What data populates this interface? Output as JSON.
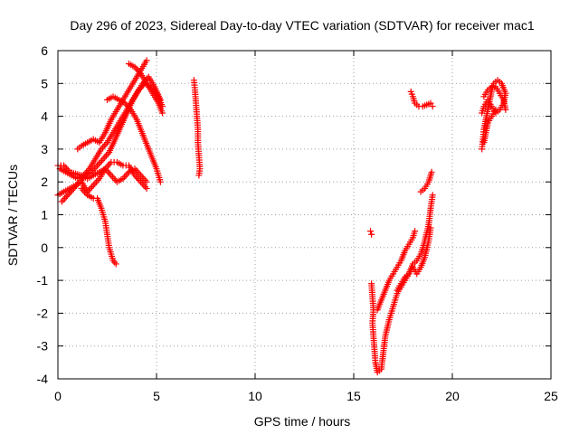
{
  "chart_data": {
    "type": "scatter",
    "title": "Day 296 of 2023, Sidereal Day-to-day VTEC variation (SDTVAR) for receiver mac1",
    "xlabel": "GPS time / hours",
    "ylabel": "SDTVAR / TECUs",
    "xlim": [
      0,
      25
    ],
    "ylim": [
      -4,
      6
    ],
    "xticks": [
      "0",
      "5",
      "10",
      "15",
      "20",
      "25"
    ],
    "yticks": [
      "-4",
      "-3",
      "-2",
      "-1",
      "0",
      "1",
      "2",
      "3",
      "4",
      "5",
      "6"
    ],
    "grid": true,
    "marker": "plus",
    "color": "#ff0000",
    "segments": [
      {
        "points": [
          [
            0.0,
            2.5
          ],
          [
            0.3,
            2.5
          ],
          [
            0.6,
            2.3
          ],
          [
            0.9,
            2.25
          ],
          [
            1.2,
            2.2
          ],
          [
            1.5,
            2.1
          ],
          [
            1.8,
            2.2
          ],
          [
            2.1,
            2.3
          ],
          [
            2.4,
            2.4
          ],
          [
            2.7,
            2.6
          ],
          [
            3.0,
            2.6
          ],
          [
            3.3,
            2.5
          ],
          [
            3.6,
            2.5
          ],
          [
            3.9,
            2.2
          ],
          [
            4.2,
            2.0
          ],
          [
            4.5,
            1.8
          ]
        ]
      },
      {
        "points": [
          [
            0.0,
            1.6
          ],
          [
            0.3,
            1.7
          ],
          [
            0.6,
            1.8
          ],
          [
            0.9,
            1.9
          ],
          [
            1.2,
            2.0
          ],
          [
            1.5,
            1.7
          ],
          [
            1.8,
            1.9
          ],
          [
            2.1,
            2.1
          ],
          [
            2.4,
            2.4
          ],
          [
            2.7,
            2.2
          ],
          [
            3.0,
            2.0
          ],
          [
            3.3,
            2.1
          ],
          [
            3.6,
            2.3
          ],
          [
            3.9,
            2.4
          ],
          [
            4.2,
            2.2
          ],
          [
            4.5,
            2.0
          ]
        ]
      },
      {
        "points": [
          [
            0.2,
            1.4
          ],
          [
            0.5,
            1.6
          ],
          [
            0.8,
            1.8
          ],
          [
            1.1,
            2.0
          ],
          [
            1.4,
            2.2
          ],
          [
            1.7,
            2.3
          ],
          [
            2.0,
            2.5
          ],
          [
            2.3,
            2.7
          ],
          [
            2.6,
            2.9
          ],
          [
            2.9,
            3.3
          ],
          [
            3.2,
            3.7
          ],
          [
            3.5,
            4.1
          ],
          [
            3.8,
            4.5
          ],
          [
            4.1,
            4.8
          ],
          [
            4.4,
            5.0
          ],
          [
            4.7,
            4.9
          ],
          [
            5.0,
            4.7
          ],
          [
            5.3,
            4.3
          ]
        ]
      },
      {
        "points": [
          [
            0.1,
            2.4
          ],
          [
            0.4,
            2.3
          ],
          [
            0.7,
            2.2
          ],
          [
            1.0,
            2.1
          ],
          [
            1.3,
            2.2
          ],
          [
            1.6,
            2.4
          ],
          [
            1.9,
            2.7
          ],
          [
            2.2,
            3.0
          ],
          [
            2.5,
            3.2
          ],
          [
            2.8,
            3.5
          ],
          [
            3.1,
            3.8
          ],
          [
            3.4,
            4.1
          ],
          [
            3.7,
            4.4
          ],
          [
            4.0,
            4.7
          ],
          [
            4.3,
            5.0
          ],
          [
            4.6,
            5.2
          ],
          [
            4.9,
            4.9
          ],
          [
            5.2,
            4.5
          ]
        ]
      },
      {
        "points": [
          [
            1.0,
            3.0
          ],
          [
            1.2,
            3.1
          ],
          [
            1.5,
            3.2
          ],
          [
            1.8,
            3.3
          ],
          [
            2.1,
            3.2
          ],
          [
            2.4,
            3.5
          ],
          [
            2.7,
            3.9
          ],
          [
            3.0,
            4.2
          ],
          [
            3.3,
            4.5
          ],
          [
            3.6,
            4.8
          ],
          [
            3.9,
            5.1
          ],
          [
            4.2,
            5.4
          ],
          [
            4.5,
            5.7
          ]
        ]
      },
      {
        "points": [
          [
            2.5,
            4.5
          ],
          [
            2.8,
            4.6
          ],
          [
            3.1,
            4.5
          ],
          [
            3.4,
            4.4
          ],
          [
            3.7,
            4.2
          ],
          [
            4.0,
            3.9
          ],
          [
            4.2,
            3.6
          ],
          [
            4.4,
            3.3
          ],
          [
            4.6,
            3.0
          ],
          [
            4.8,
            2.7
          ],
          [
            5.0,
            2.4
          ],
          [
            5.2,
            2.0
          ]
        ]
      },
      {
        "points": [
          [
            3.6,
            5.6
          ],
          [
            3.9,
            5.5
          ],
          [
            4.2,
            5.3
          ],
          [
            4.5,
            5.0
          ],
          [
            4.8,
            4.7
          ],
          [
            5.1,
            4.4
          ],
          [
            5.3,
            4.1
          ]
        ]
      },
      {
        "points": [
          [
            1.2,
            1.8
          ],
          [
            1.5,
            1.6
          ],
          [
            1.8,
            1.5
          ],
          [
            2.0,
            1.5
          ],
          [
            2.2,
            1.2
          ],
          [
            2.4,
            0.8
          ],
          [
            2.5,
            0.4
          ],
          [
            2.6,
            0.0
          ],
          [
            2.7,
            -0.2
          ],
          [
            2.8,
            -0.4
          ],
          [
            2.95,
            -0.5
          ]
        ]
      },
      {
        "points": [
          [
            6.9,
            5.1
          ],
          [
            6.95,
            4.8
          ],
          [
            7.0,
            4.4
          ],
          [
            7.05,
            4.0
          ],
          [
            7.1,
            3.6
          ],
          [
            7.1,
            3.2
          ],
          [
            7.15,
            2.8
          ],
          [
            7.2,
            2.4
          ],
          [
            7.15,
            2.2
          ]
        ]
      },
      {
        "points": [
          [
            15.85,
            0.5
          ],
          [
            15.9,
            0.4
          ]
        ]
      },
      {
        "points": [
          [
            15.9,
            -1.1
          ],
          [
            15.95,
            -1.5
          ],
          [
            16.0,
            -1.9
          ],
          [
            15.95,
            -2.3
          ],
          [
            16.0,
            -2.7
          ],
          [
            16.05,
            -3.1
          ],
          [
            16.1,
            -3.5
          ],
          [
            16.2,
            -3.8
          ],
          [
            16.4,
            -3.7
          ],
          [
            16.5,
            -3.2
          ],
          [
            16.6,
            -2.7
          ],
          [
            16.8,
            -2.2
          ],
          [
            17.0,
            -1.8
          ],
          [
            17.2,
            -1.4
          ],
          [
            17.4,
            -1.2
          ],
          [
            17.6,
            -1.0
          ],
          [
            17.8,
            -0.8
          ],
          [
            18.0,
            -0.5
          ],
          [
            18.2,
            -0.4
          ],
          [
            18.4,
            -0.2
          ],
          [
            18.6,
            0.2
          ],
          [
            18.8,
            0.7
          ],
          [
            18.9,
            1.2
          ],
          [
            19.0,
            1.6
          ]
        ]
      },
      {
        "points": [
          [
            16.2,
            -1.9
          ],
          [
            16.4,
            -1.6
          ],
          [
            16.6,
            -1.3
          ],
          [
            16.8,
            -1.0
          ],
          [
            17.0,
            -0.8
          ],
          [
            17.2,
            -0.6
          ],
          [
            17.4,
            -0.4
          ],
          [
            17.6,
            -0.1
          ],
          [
            17.8,
            0.1
          ],
          [
            18.0,
            0.3
          ],
          [
            18.1,
            0.5
          ]
        ]
      },
      {
        "points": [
          [
            17.2,
            -1.3
          ],
          [
            17.4,
            -1.1
          ],
          [
            17.6,
            -0.9
          ],
          [
            17.8,
            -0.8
          ],
          [
            18.0,
            -0.6
          ],
          [
            18.2,
            -0.8
          ],
          [
            18.4,
            -0.6
          ],
          [
            18.6,
            -0.3
          ],
          [
            18.8,
            0.2
          ],
          [
            18.9,
            0.6
          ]
        ]
      },
      {
        "points": [
          [
            18.4,
            1.7
          ],
          [
            18.6,
            1.8
          ],
          [
            18.8,
            2.0
          ],
          [
            18.95,
            2.3
          ]
        ]
      },
      {
        "points": [
          [
            17.9,
            4.75
          ],
          [
            18.0,
            4.6
          ],
          [
            18.1,
            4.4
          ],
          [
            18.3,
            4.3
          ],
          [
            18.5,
            4.3
          ],
          [
            18.7,
            4.35
          ],
          [
            18.9,
            4.4
          ],
          [
            19.0,
            4.3
          ]
        ]
      },
      {
        "points": [
          [
            21.5,
            3.0
          ],
          [
            21.55,
            3.3
          ],
          [
            21.6,
            3.6
          ],
          [
            21.7,
            3.9
          ],
          [
            21.8,
            4.2
          ],
          [
            21.9,
            4.5
          ],
          [
            22.0,
            4.8
          ],
          [
            22.1,
            5.0
          ],
          [
            22.3,
            5.1
          ],
          [
            22.5,
            5.0
          ],
          [
            22.7,
            4.7
          ],
          [
            22.6,
            4.4
          ],
          [
            22.4,
            4.2
          ],
          [
            22.2,
            4.1
          ],
          [
            22.0,
            4.3
          ],
          [
            21.8,
            4.5
          ],
          [
            21.6,
            4.3
          ],
          [
            21.5,
            4.1
          ]
        ]
      },
      {
        "points": [
          [
            21.6,
            4.6
          ],
          [
            21.8,
            4.8
          ],
          [
            22.0,
            4.9
          ],
          [
            22.2,
            4.9
          ],
          [
            22.4,
            4.7
          ],
          [
            22.6,
            4.5
          ],
          [
            22.7,
            4.2
          ]
        ]
      },
      {
        "points": [
          [
            21.6,
            3.2
          ],
          [
            21.7,
            3.5
          ],
          [
            21.8,
            3.8
          ],
          [
            22.0,
            4.0
          ],
          [
            22.2,
            4.2
          ]
        ]
      }
    ]
  }
}
